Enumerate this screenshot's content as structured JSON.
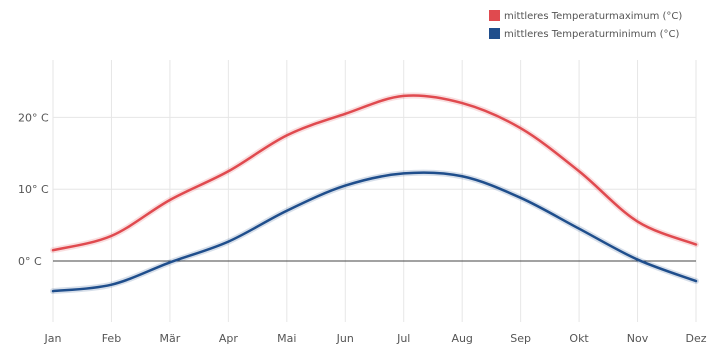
{
  "chart_data": {
    "type": "line",
    "categories": [
      "Jan",
      "Feb",
      "Mär",
      "Apr",
      "Mai",
      "Jun",
      "Jul",
      "Aug",
      "Sep",
      "Okt",
      "Nov",
      "Dez"
    ],
    "series": [
      {
        "name": "mittleres Temperaturmaximum (°C)",
        "color": "#e04a4f",
        "values": [
          1.5,
          3.5,
          8.5,
          12.5,
          17.5,
          20.5,
          23.0,
          22.0,
          18.5,
          12.5,
          5.5,
          2.3
        ]
      },
      {
        "name": "mittleres Temperaturminimum (°C)",
        "color": "#1f4e8c",
        "values": [
          -4.2,
          -3.3,
          -0.2,
          2.7,
          7.0,
          10.5,
          12.2,
          11.8,
          8.8,
          4.5,
          0.2,
          -2.8
        ]
      }
    ],
    "y_ticks": [
      {
        "value": 0,
        "label": "0° C"
      },
      {
        "value": 10,
        "label": "10° C"
      },
      {
        "value": 20,
        "label": "20° C"
      }
    ],
    "ylim": [
      -8.5,
      28
    ],
    "grid": true,
    "legend_position": "top-right",
    "zero_line": true
  }
}
